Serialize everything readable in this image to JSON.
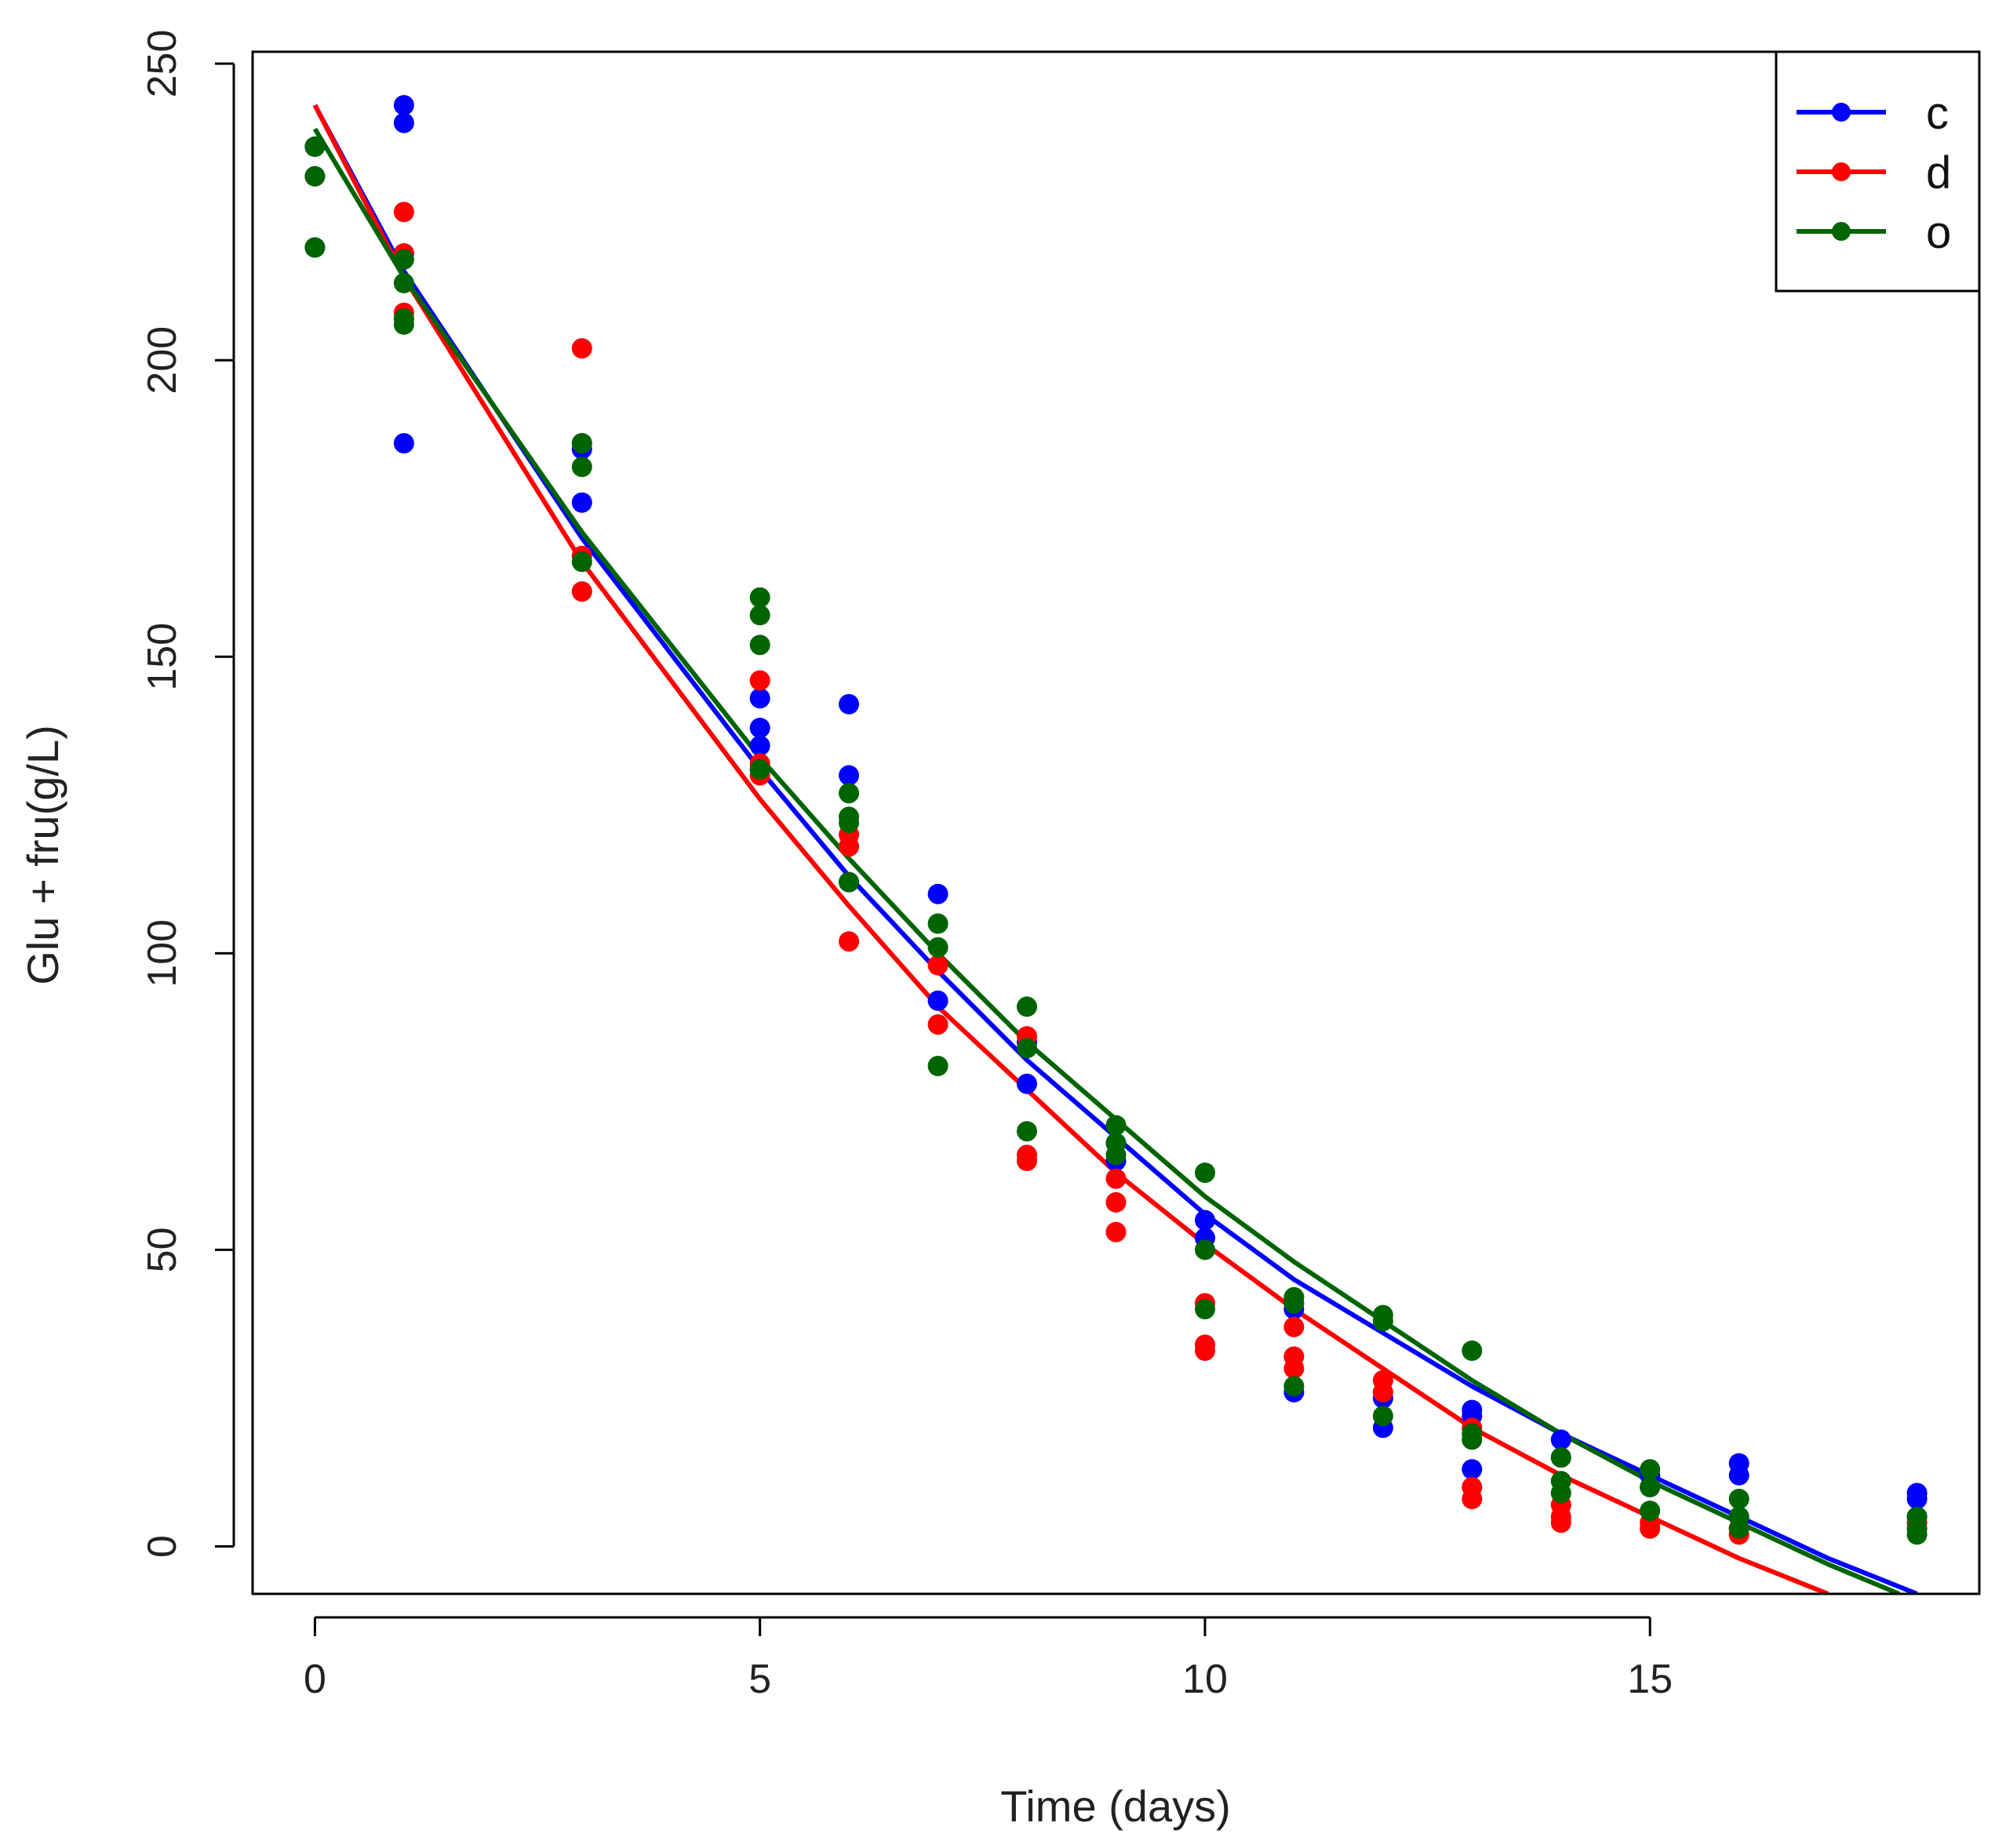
{
  "chart_data": {
    "type": "scatter",
    "title": "",
    "xlabel": "Time (days)",
    "ylabel": "Glu + fru(g/L)",
    "xlim": [
      -0.7,
      18.7
    ],
    "ylim": [
      -8,
      252
    ],
    "xticks": [
      0,
      5,
      10,
      15
    ],
    "yticks": [
      0,
      50,
      100,
      150,
      200,
      250
    ],
    "legend_position": "top-right",
    "series": [
      {
        "name": "c",
        "color": "#0000ff",
        "points": [
          [
            0,
            236
          ],
          [
            0,
            231
          ],
          [
            0,
            219
          ],
          [
            1,
            243
          ],
          [
            1,
            240
          ],
          [
            1,
            218
          ],
          [
            1,
            186
          ],
          [
            3,
            176
          ],
          [
            3,
            185
          ],
          [
            5,
            143
          ],
          [
            5,
            138
          ],
          [
            5,
            135
          ],
          [
            5,
            131
          ],
          [
            6,
            142
          ],
          [
            6,
            130
          ],
          [
            6,
            112
          ],
          [
            7,
            110
          ],
          [
            7,
            92
          ],
          [
            8,
            78
          ],
          [
            8,
            85
          ],
          [
            9,
            68
          ],
          [
            9,
            65
          ],
          [
            10,
            55
          ],
          [
            10,
            52
          ],
          [
            11,
            26
          ],
          [
            11,
            40
          ],
          [
            12,
            20
          ],
          [
            12,
            25
          ],
          [
            13,
            23
          ],
          [
            13,
            22
          ],
          [
            13,
            13
          ],
          [
            14,
            18
          ],
          [
            14,
            15
          ],
          [
            15,
            12
          ],
          [
            15,
            10
          ],
          [
            16,
            14
          ],
          [
            16,
            12
          ],
          [
            16,
            5
          ],
          [
            18,
            9
          ],
          [
            18,
            8
          ],
          [
            18,
            5
          ]
        ],
        "fit": [
          [
            0,
            243
          ],
          [
            1,
            215
          ],
          [
            3,
            170
          ],
          [
            5,
            131
          ],
          [
            6,
            113
          ],
          [
            7,
            97
          ],
          [
            8,
            82
          ],
          [
            9,
            69
          ],
          [
            10,
            56
          ],
          [
            11,
            45
          ],
          [
            12,
            36
          ],
          [
            13,
            27
          ],
          [
            14,
            19
          ],
          [
            15,
            12
          ],
          [
            16,
            5
          ],
          [
            17,
            -2
          ],
          [
            18,
            -8
          ]
        ]
      },
      {
        "name": "d",
        "color": "#ff0000",
        "points": [
          [
            1,
            225
          ],
          [
            1,
            218
          ],
          [
            1,
            208
          ],
          [
            3,
            202
          ],
          [
            3,
            186
          ],
          [
            3,
            167
          ],
          [
            3,
            161
          ],
          [
            5,
            146
          ],
          [
            5,
            132
          ],
          [
            5,
            130
          ],
          [
            6,
            120
          ],
          [
            6,
            118
          ],
          [
            6,
            102
          ],
          [
            7,
            98
          ],
          [
            7,
            88
          ],
          [
            8,
            86
          ],
          [
            8,
            66
          ],
          [
            8,
            65
          ],
          [
            9,
            62
          ],
          [
            9,
            58
          ],
          [
            9,
            53
          ],
          [
            10,
            41
          ],
          [
            10,
            34
          ],
          [
            10,
            33
          ],
          [
            11,
            37
          ],
          [
            11,
            32
          ],
          [
            11,
            30
          ],
          [
            12,
            28
          ],
          [
            12,
            26
          ],
          [
            13,
            20
          ],
          [
            13,
            10
          ],
          [
            13,
            8
          ],
          [
            14,
            7
          ],
          [
            14,
            5
          ],
          [
            14,
            4
          ],
          [
            15,
            4
          ],
          [
            15,
            3
          ],
          [
            16,
            3
          ],
          [
            16,
            2
          ],
          [
            18,
            4
          ],
          [
            18,
            3
          ]
        ],
        "fit": [
          [
            0,
            243
          ],
          [
            1,
            214
          ],
          [
            3,
            166
          ],
          [
            5,
            126
          ],
          [
            6,
            108
          ],
          [
            7,
            91
          ],
          [
            8,
            77
          ],
          [
            9,
            63
          ],
          [
            10,
            51
          ],
          [
            11,
            40
          ],
          [
            12,
            30
          ],
          [
            13,
            20
          ],
          [
            14,
            12
          ],
          [
            15,
            5
          ],
          [
            16,
            -2
          ],
          [
            17,
            -8
          ]
        ]
      },
      {
        "name": "o",
        "color": "#006400",
        "points": [
          [
            0,
            236
          ],
          [
            0,
            231
          ],
          [
            0,
            219
          ],
          [
            1,
            217
          ],
          [
            1,
            213
          ],
          [
            1,
            207
          ],
          [
            1,
            206
          ],
          [
            3,
            186
          ],
          [
            3,
            182
          ],
          [
            3,
            166
          ],
          [
            5,
            160
          ],
          [
            5,
            157
          ],
          [
            5,
            152
          ],
          [
            5,
            131
          ],
          [
            6,
            127
          ],
          [
            6,
            123
          ],
          [
            6,
            122
          ],
          [
            6,
            112
          ],
          [
            7,
            105
          ],
          [
            7,
            101
          ],
          [
            7,
            81
          ],
          [
            8,
            91
          ],
          [
            8,
            84
          ],
          [
            8,
            70
          ],
          [
            9,
            71
          ],
          [
            9,
            68
          ],
          [
            9,
            66
          ],
          [
            10,
            63
          ],
          [
            10,
            50
          ],
          [
            10,
            40
          ],
          [
            11,
            42
          ],
          [
            11,
            41
          ],
          [
            11,
            27
          ],
          [
            12,
            39
          ],
          [
            12,
            38
          ],
          [
            12,
            22
          ],
          [
            13,
            33
          ],
          [
            13,
            19
          ],
          [
            13,
            18
          ],
          [
            14,
            15
          ],
          [
            14,
            11
          ],
          [
            14,
            9
          ],
          [
            15,
            13
          ],
          [
            15,
            10
          ],
          [
            15,
            6
          ],
          [
            16,
            8
          ],
          [
            16,
            5
          ],
          [
            16,
            3
          ],
          [
            18,
            5
          ],
          [
            18,
            3
          ],
          [
            18,
            2
          ]
        ],
        "fit": [
          [
            0,
            239
          ],
          [
            1,
            214
          ],
          [
            3,
            171
          ],
          [
            5,
            133
          ],
          [
            6,
            116
          ],
          [
            7,
            100
          ],
          [
            8,
            85
          ],
          [
            9,
            72
          ],
          [
            10,
            59
          ],
          [
            11,
            48
          ],
          [
            12,
            38
          ],
          [
            13,
            28
          ],
          [
            14,
            19
          ],
          [
            15,
            11
          ],
          [
            16,
            4
          ],
          [
            17,
            -3
          ],
          [
            17.8,
            -8
          ]
        ]
      }
    ]
  }
}
